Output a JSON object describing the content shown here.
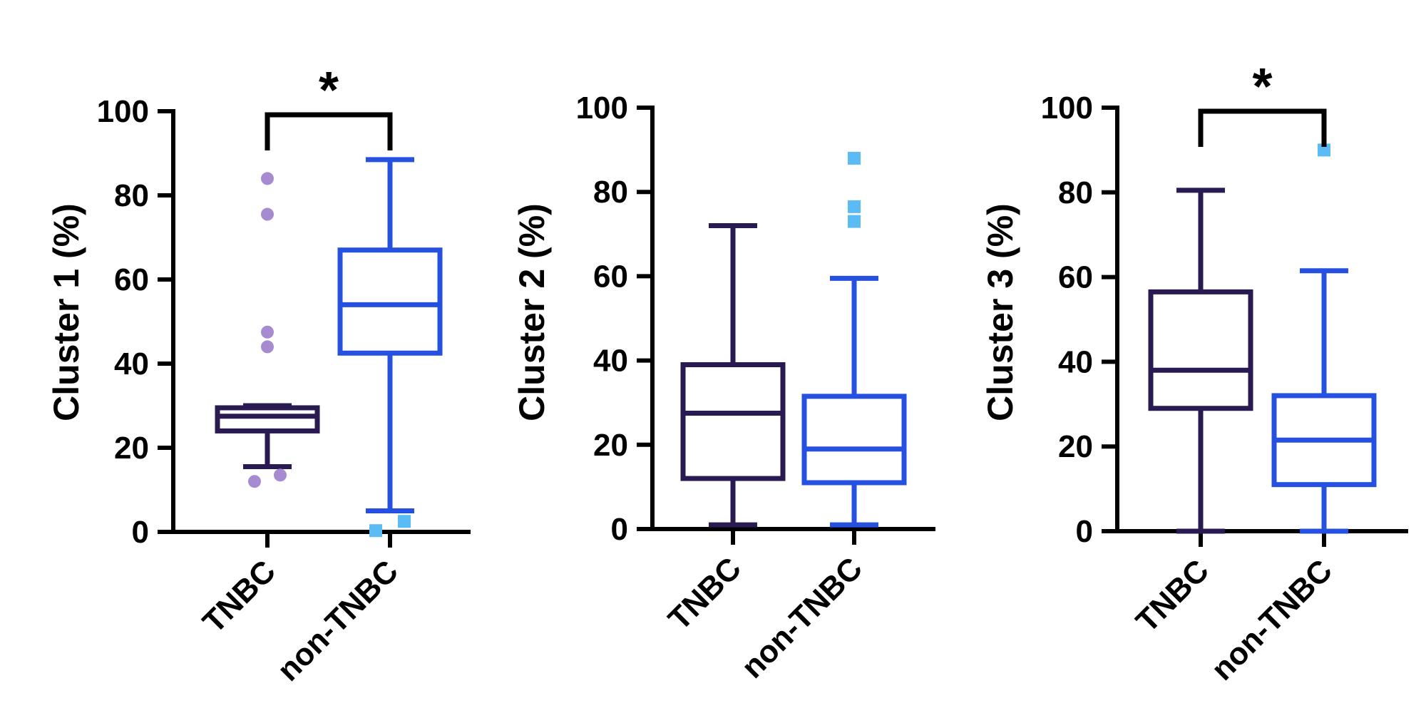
{
  "colors": {
    "tnbc": "#2a1a52",
    "non_tnbc": "#2550e0",
    "tnbc_outlier": "#a68bd0",
    "non_tnbc_outlier": "#5bbcf5",
    "axis": "#000000"
  },
  "chart_data": [
    {
      "type": "box",
      "ylabel": "Cluster 1 (%)",
      "ylim": [
        0,
        100
      ],
      "yticks": [
        "0",
        "20",
        "40",
        "60",
        "80",
        "100"
      ],
      "categories": [
        "TNBC",
        "non-TNBC"
      ],
      "boxes": [
        {
          "name": "TNBC",
          "whisker_low": 15.5,
          "q1": 24,
          "median": 27.5,
          "q3": 29.5,
          "whisker_high": 30,
          "outliers": [
            84,
            75.5,
            47.5,
            44,
            12,
            13.5
          ]
        },
        {
          "name": "non-TNBC",
          "whisker_low": 5,
          "q1": 42.5,
          "median": 54,
          "q3": 67,
          "whisker_high": 88.5,
          "outliers": [
            0.3,
            2.5
          ]
        }
      ],
      "significance": {
        "label": "*",
        "from": 0,
        "to": 1
      }
    },
    {
      "type": "box",
      "ylabel": "Cluster 2 (%)",
      "ylim": [
        0,
        100
      ],
      "yticks": [
        "0",
        "20",
        "40",
        "60",
        "80",
        "100"
      ],
      "categories": [
        "TNBC",
        "non-TNBC"
      ],
      "boxes": [
        {
          "name": "TNBC",
          "whisker_low": 1,
          "q1": 12,
          "median": 27.5,
          "q3": 39,
          "whisker_high": 72,
          "outliers": []
        },
        {
          "name": "non-TNBC",
          "whisker_low": 1,
          "q1": 11,
          "median": 19,
          "q3": 31.5,
          "whisker_high": 59.5,
          "outliers": [
            88,
            76.5,
            73
          ]
        }
      ],
      "significance": null
    },
    {
      "type": "box",
      "ylabel": "Cluster 3 (%)",
      "ylim": [
        0,
        100
      ],
      "yticks": [
        "0",
        "20",
        "40",
        "60",
        "80",
        "100"
      ],
      "categories": [
        "TNBC",
        "non-TNBC"
      ],
      "boxes": [
        {
          "name": "TNBC",
          "whisker_low": 0,
          "q1": 29,
          "median": 38,
          "q3": 56.5,
          "whisker_high": 80.5,
          "outliers": []
        },
        {
          "name": "non-TNBC",
          "whisker_low": 0,
          "q1": 11,
          "median": 21.5,
          "q3": 32,
          "whisker_high": 61.5,
          "outliers": [
            90
          ]
        }
      ],
      "significance": {
        "label": "*",
        "from": 0,
        "to": 1
      }
    }
  ]
}
